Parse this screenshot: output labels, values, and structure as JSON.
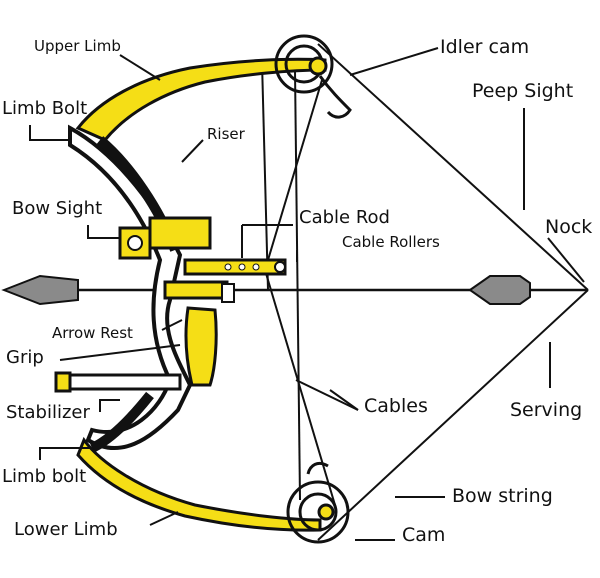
{
  "diagram": {
    "labels": {
      "upper_limb": "Upper Limb",
      "limb_bolt_top": "Limb Bolt",
      "riser": "Riser",
      "bow_sight": "Bow Sight",
      "cable_rod": "Cable Rod",
      "cable_rollers": "Cable Rollers",
      "arrow_rest": "Arrow Rest",
      "grip": "Grip",
      "stabilizer": "Stabilizer",
      "limb_bolt_bottom": "Limb bolt",
      "lower_limb": "Lower Limb",
      "idler_cam": "Idler cam",
      "peep_sight": "Peep Sight",
      "nock": "Nock",
      "cables": "Cables",
      "serving": "Serving",
      "bow_string": "Bow string",
      "cam": "Cam"
    },
    "colors": {
      "limb_yellow": "#f5de16",
      "outline": "#111111",
      "arrowhead_gray": "#8a8a8a"
    }
  }
}
